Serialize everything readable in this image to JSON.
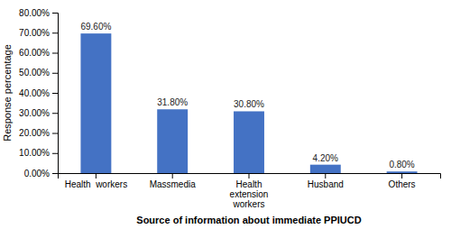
{
  "chart_data": {
    "type": "bar",
    "categories": [
      "Health  workers",
      "Massmedia",
      "Health\nextension\nworkers",
      "Husband",
      "Others"
    ],
    "values": [
      69.6,
      31.8,
      30.8,
      4.2,
      0.8
    ],
    "value_labels": [
      "69.60%",
      "31.80%",
      "30.80%",
      "4.20%",
      "0.80%"
    ],
    "color": "#4472C4",
    "xlabel": "Source of information about immediate PPIUCD",
    "ylabel": "Response percentage",
    "ylim": [
      0,
      80
    ],
    "yticks": [
      {
        "value": 0,
        "label": "0.00%"
      },
      {
        "value": 10,
        "label": "10.00%"
      },
      {
        "value": 20,
        "label": "20.00%"
      },
      {
        "value": 30,
        "label": "30.00%"
      },
      {
        "value": 40,
        "label": "40.00%"
      },
      {
        "value": 50,
        "label": "50.00%"
      },
      {
        "value": 60,
        "label": "60.00%"
      },
      {
        "value": 70,
        "label": "70.00%"
      },
      {
        "value": 80,
        "label": "80.00%"
      }
    ],
    "data_labels": true,
    "grid": false
  }
}
